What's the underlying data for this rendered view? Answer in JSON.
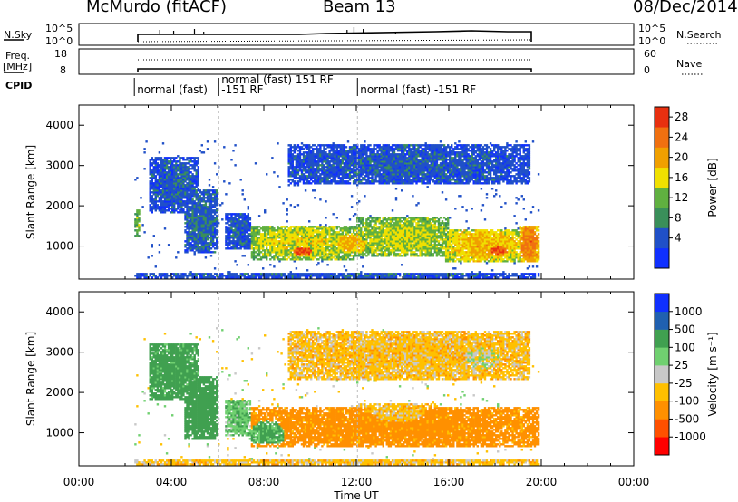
{
  "header": {
    "title": "McMurdo (fitACF)",
    "beam": "Beam 13",
    "date": "08/Dec/2014"
  },
  "strip_panels": {
    "nsky": {
      "label": "N.Sky",
      "right_label": "N.Search",
      "ticks_left": [
        "10^5",
        "10^0"
      ],
      "ticks_right": [
        "10^5",
        "10^0"
      ]
    },
    "freq": {
      "label_line1": "Freq.",
      "label_line2": "[MHz]",
      "right_label": "Nave",
      "ticks_left": [
        "18",
        "8"
      ],
      "ticks_right": [
        "60",
        "0"
      ]
    },
    "cpid": {
      "label": "CPID",
      "segments": [
        {
          "text": "normal (fast)",
          "start_hour": 2.4
        },
        {
          "text": "normal (fast) 151 RF",
          "start_hour": 6.05
        },
        {
          "text": "-151 RF",
          "start_hour": 6.05
        },
        {
          "text": "normal (fast) -151 RF",
          "start_hour": 12.05
        }
      ]
    }
  },
  "colors": {
    "power": [
      "#1030ff",
      "#2050c8",
      "#3a8f5a",
      "#60b040",
      "#f0e000",
      "#f0a000",
      "#f07010",
      "#e83010"
    ],
    "velocity": [
      "#ff0000",
      "#ff5000",
      "#ff9000",
      "#ffc000",
      "#c8c8c8",
      "#70d070",
      "#40a050",
      "#2060b0",
      "#1030ff"
    ]
  },
  "chart_data": [
    {
      "type": "heatmap",
      "name": "power",
      "ylabel": "Slant Range [km]",
      "xlim": [
        0,
        24
      ],
      "ylim": [
        180,
        4500
      ],
      "yticks": [
        "4000",
        "3000",
        "2000",
        "1000"
      ],
      "colorbar": {
        "label": "Power [dB]",
        "ticks": [
          "28",
          "24",
          "20",
          "16",
          "12",
          "8",
          "4"
        ],
        "range": [
          0,
          30
        ]
      },
      "data_hours": [
        2.4,
        19.9
      ],
      "blobs": [
        {
          "t0": 3.0,
          "t1": 5.2,
          "r0": 1800,
          "r1": 3200,
          "v": 6
        },
        {
          "t0": 4.5,
          "t1": 6.0,
          "r0": 800,
          "r1": 2400,
          "v": 7
        },
        {
          "t0": 6.3,
          "t1": 7.4,
          "r0": 900,
          "r1": 1800,
          "v": 6
        },
        {
          "t0": 7.4,
          "t1": 12.0,
          "r0": 650,
          "r1": 1500,
          "v": 17
        },
        {
          "t0": 8.8,
          "t1": 10.5,
          "r0": 700,
          "r1": 1100,
          "v": 27
        },
        {
          "t0": 10.8,
          "t1": 12.5,
          "r0": 800,
          "r1": 1300,
          "v": 20
        },
        {
          "t0": 12.0,
          "t1": 16.0,
          "r0": 700,
          "r1": 1700,
          "v": 16
        },
        {
          "t0": 15.8,
          "t1": 19.2,
          "r0": 600,
          "r1": 1400,
          "v": 20
        },
        {
          "t0": 17.2,
          "t1": 18.8,
          "r0": 700,
          "r1": 1100,
          "v": 26
        },
        {
          "t0": 19.0,
          "t1": 19.9,
          "r0": 600,
          "r1": 1500,
          "v": 24
        },
        {
          "t0": 2.4,
          "t1": 2.6,
          "r0": 1200,
          "r1": 1900,
          "v": 14
        },
        {
          "t0": 9.0,
          "t1": 19.5,
          "r0": 2500,
          "r1": 3500,
          "v": 6
        },
        {
          "t0": 2.4,
          "t1": 19.9,
          "r0": 200,
          "r1": 320,
          "v": 6
        }
      ]
    },
    {
      "type": "heatmap",
      "name": "velocity",
      "xlabel": "Time UT",
      "ylabel": "Slant Range [km]",
      "xlim": [
        0,
        24
      ],
      "ylim": [
        180,
        4500
      ],
      "xticks": [
        "00:00",
        "04:00",
        "08:00",
        "12:00",
        "16:00",
        "20:00",
        "00:00"
      ],
      "yticks": [
        "4000",
        "3000",
        "2000",
        "1000"
      ],
      "colorbar": {
        "label": "Velocity [m s⁻¹]",
        "ticks": [
          "1000",
          "500",
          "100",
          "25",
          "-25",
          "-100",
          "-500",
          "-1000"
        ],
        "range": [
          -1000,
          1000
        ]
      },
      "data_hours": [
        2.4,
        19.9
      ],
      "blobs": [
        {
          "t0": 3.0,
          "t1": 5.2,
          "r0": 1800,
          "r1": 3200,
          "v": 150
        },
        {
          "t0": 4.5,
          "t1": 6.0,
          "r0": 800,
          "r1": 2400,
          "v": 200
        },
        {
          "t0": 6.3,
          "t1": 7.4,
          "r0": 900,
          "r1": 1800,
          "v": 80
        },
        {
          "t0": 7.4,
          "t1": 19.9,
          "r0": 650,
          "r1": 1600,
          "v": -150
        },
        {
          "t0": 7.4,
          "t1": 9.0,
          "r0": 700,
          "r1": 1300,
          "v": 120
        },
        {
          "t0": 12.0,
          "t1": 15.5,
          "r0": 1000,
          "r1": 1700,
          "v": -60
        },
        {
          "t0": 9.0,
          "t1": 19.5,
          "r0": 2300,
          "r1": 3500,
          "v": -60
        },
        {
          "t0": 16.0,
          "t1": 18.5,
          "r0": 2500,
          "r1": 3200,
          "v": 0
        },
        {
          "t0": 2.4,
          "t1": 19.9,
          "r0": 200,
          "r1": 320,
          "v": -60
        }
      ]
    }
  ]
}
